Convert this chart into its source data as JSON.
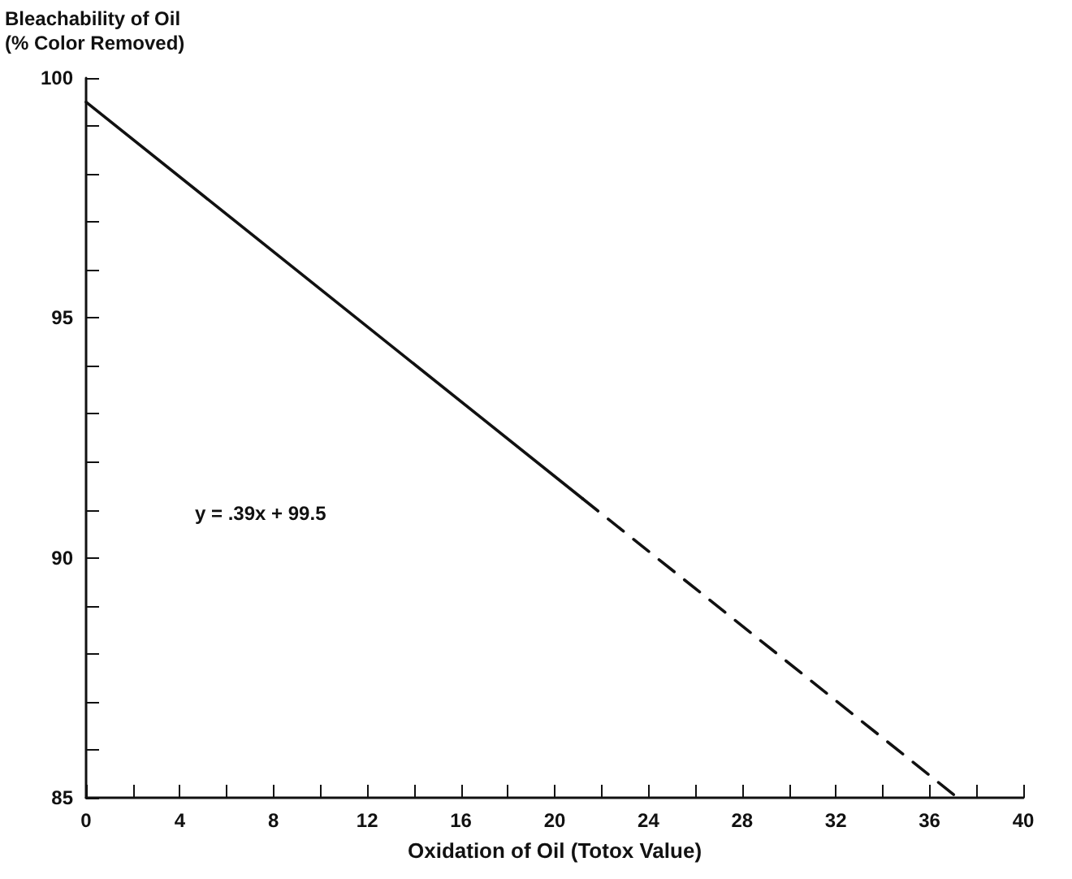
{
  "chart_data": {
    "type": "line",
    "ylabel": "Bleachability of Oil\n(% Color Removed)",
    "xlabel": "Oxidation of Oil (Totox Value)",
    "annotations": [
      "y = .39x + 99.5"
    ],
    "series": [
      {
        "color": "#111111",
        "x": [
          0,
          21.2
        ],
        "values": [
          99.5,
          91.23
        ],
        "line_style": "solid"
      },
      {
        "color": "#111111",
        "x": [
          21.2,
          37.2
        ],
        "values": [
          91.23,
          85
        ],
        "line_style": "dashed"
      }
    ],
    "xlim": [
      0,
      40
    ],
    "xticks": [
      0,
      {
        "value": 2,
        "label": null
      },
      4,
      {
        "value": 6,
        "label": null
      },
      8,
      {
        "value": 10,
        "label": null
      },
      12,
      {
        "value": 14,
        "label": null
      },
      16,
      {
        "value": 18,
        "label": null
      },
      20,
      {
        "value": 22,
        "label": null
      },
      24,
      {
        "value": 26,
        "label": null
      },
      28,
      {
        "value": 30,
        "label": null
      },
      32,
      {
        "value": 34,
        "label": null
      },
      36,
      {
        "value": 38,
        "label": null
      },
      40
    ],
    "ylim": [
      85,
      100
    ],
    "yticks": [
      85,
      {
        "value": 86,
        "label": null
      },
      {
        "value": 87,
        "label": null
      },
      {
        "value": 88,
        "label": null
      },
      {
        "value": 89,
        "label": null
      },
      90,
      {
        "value": 91,
        "label": null
      },
      {
        "value": 92,
        "label": null
      },
      {
        "value": 93,
        "label": null
      },
      {
        "value": 94,
        "label": null
      },
      95,
      {
        "value": 96,
        "label": null
      },
      {
        "value": 97,
        "label": null
      },
      {
        "value": 98,
        "label": null
      },
      {
        "value": 99,
        "label": null
      },
      100
    ],
    "marker": "none"
  }
}
